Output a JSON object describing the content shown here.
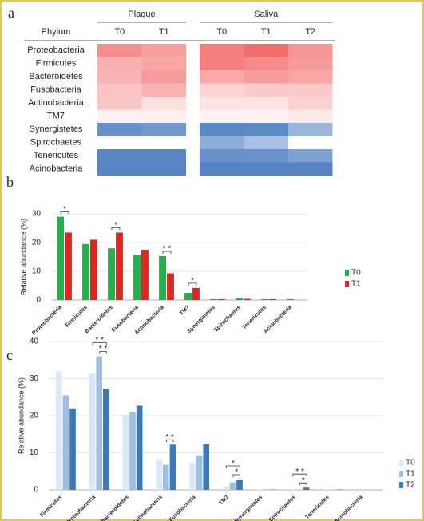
{
  "chart_data": [
    {
      "type": "heatmap",
      "label": "a",
      "row_header": "Phylum",
      "column_groups": [
        {
          "name": "Plaque",
          "columns": [
            "T0",
            "T1"
          ]
        },
        {
          "name": "Saliva",
          "columns": [
            "T0",
            "T1",
            "T2"
          ]
        }
      ],
      "rows": [
        "Proteobacteria",
        "Firmicutes",
        "Bacteroidetes",
        "Fusobacteria",
        "Actinobacteria",
        "TM7",
        "Synergistetes",
        "Spirochaetes",
        "Tenericutes",
        "Acinobacteria"
      ],
      "colors": [
        [
          "#f58f8f",
          "#f8a0a0",
          "#f47f7f",
          "#f36c6c",
          "#f59494"
        ],
        [
          "#f9b0b0",
          "#f8a5a5",
          "#f47f7f",
          "#f58a8a",
          "#f69a9a"
        ],
        [
          "#f9b5b5",
          "#f69c9c",
          "#f8a8a8",
          "#f69c9c",
          "#f7a5a5"
        ],
        [
          "#fbc3c3",
          "#f9b3b3",
          "#fcd4d4",
          "#fbcaca",
          "#facbcb"
        ],
        [
          "#fbc6c6",
          "#fde0e0",
          "#fde3e3",
          "#fde3e3",
          "#fbd0d0"
        ],
        [
          "#fdf0f0",
          "#fdf0f0",
          "#fef2f2",
          "#fef2f2",
          "#fde8e8"
        ],
        [
          "#6690c8",
          "#7398cb",
          "#5a88c5",
          "#5e8ac6",
          "#9ab6dd"
        ],
        [
          "#ffffff",
          "#ffffff",
          "#8eaed9",
          "#a5c0e2",
          "#ffffff"
        ],
        [
          "#5a87c4",
          "#5a87c4",
          "#6890ca",
          "#6a92cb",
          "#7ca0d1"
        ],
        [
          "#5583c3",
          "#5583c3",
          "#5583c3",
          "#5583c3",
          "#5583c3"
        ]
      ]
    },
    {
      "type": "bar",
      "label": "b",
      "y_label": "Relative abundance (%)",
      "categories": [
        "Proteobacteria",
        "Firmicutes",
        "Bacteroidetes",
        "Fusobacteria",
        "Actinobacteria",
        "TM7",
        "Synergistetes",
        "Spirochaetes",
        "Tenericutes",
        "Acinobacteria"
      ],
      "series": [
        {
          "name": "T0",
          "color": "#22b04b",
          "values": [
            29,
            19.5,
            18,
            15.7,
            15.3,
            2.5,
            0.3,
            0.6,
            0.3,
            0.3
          ]
        },
        {
          "name": "T1",
          "color": "#e0271f",
          "values": [
            23.5,
            21,
            23.5,
            17.5,
            9.3,
            4.2,
            0.3,
            0.4,
            0.3,
            0
          ]
        }
      ],
      "ylim": [
        0,
        30
      ],
      "yticks": [
        0,
        10,
        20,
        30
      ],
      "grid": true,
      "legend": "right",
      "annotations": [
        {
          "text": "*",
          "category": "Proteobacteria",
          "from": "T0",
          "to": "T1"
        },
        {
          "text": "*",
          "category": "Bacteroidetes",
          "from": "T0",
          "to": "T1"
        },
        {
          "text": "* *",
          "category": "Actinobacteria",
          "from": "T0",
          "to": "T1"
        },
        {
          "text": "*",
          "category": "TM7",
          "from": "T0",
          "to": "T1"
        }
      ]
    },
    {
      "type": "bar",
      "label": "c",
      "y_label": "Relative abundance (%)",
      "categories": [
        "Firmicutes",
        "Proteobacteria",
        "Bacteroidetes",
        "Actinobacteria",
        "Fusobacteria",
        "TM7",
        "Synergistetes",
        "Spirochaetes",
        "Tenericutes",
        "Acinobacteria"
      ],
      "series": [
        {
          "name": "T0",
          "color": "#dce8f5",
          "values": [
            32,
            31.5,
            20.3,
            8.3,
            7.3,
            0.8,
            0.1,
            0.1,
            0.1,
            0
          ]
        },
        {
          "name": "T1",
          "color": "#9dbfe2",
          "values": [
            25.5,
            36,
            21,
            6.7,
            9.3,
            2,
            0.1,
            0.1,
            0.1,
            0
          ]
        },
        {
          "name": "T2",
          "color": "#3a7ab8",
          "values": [
            22,
            27.3,
            22.7,
            12.2,
            12.3,
            2.8,
            0.1,
            0.6,
            0.1,
            0
          ]
        }
      ],
      "ylim": [
        0,
        40
      ],
      "yticks": [
        0,
        10,
        20,
        30,
        40
      ],
      "grid": true,
      "legend": "right",
      "annotations": [
        {
          "text": "* *",
          "category": "Proteobacteria",
          "from": "T1",
          "to": "T2"
        },
        {
          "text": "* *",
          "category": "Proteobacteria",
          "from": "T0",
          "to": "T2"
        },
        {
          "text": "* *",
          "category": "Actinobacteria",
          "from": "T1",
          "to": "T2"
        },
        {
          "text": "*",
          "category": "TM7",
          "from": "T1",
          "to": "T2"
        },
        {
          "text": "*",
          "category": "TM7",
          "from": "T0",
          "to": "T2"
        },
        {
          "text": "*",
          "category": "Spirochaetes",
          "from": "T1",
          "to": "T2"
        },
        {
          "text": "* *",
          "category": "Spirochaetes",
          "from": "T0",
          "to": "T2"
        }
      ]
    }
  ]
}
